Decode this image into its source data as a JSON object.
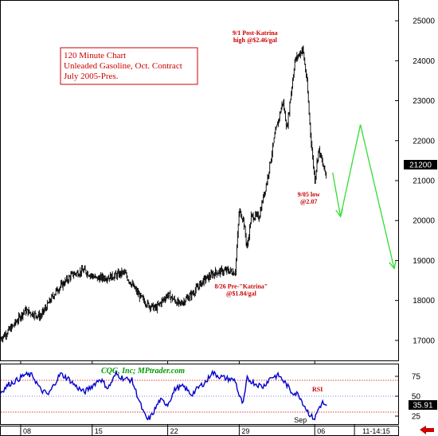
{
  "chart_data": {
    "type": "bar",
    "subtype": "ohlc",
    "title_lines": [
      "120 Minute Chart",
      "Unleaded Gasoline, Oct. Contract",
      "July 2005-Pres."
    ],
    "ylim": [
      16500,
      25500
    ],
    "y_ticks": [
      17000,
      18000,
      19000,
      20000,
      21000,
      22000,
      23000,
      24000,
      25000
    ],
    "last_value_label": "21200",
    "x_tick_labels": [
      "08",
      "15",
      "22",
      "29",
      "06"
    ],
    "x_sub_labels": [
      "Sep"
    ],
    "x_range_label": "11-14:15",
    "x_index_range": [
      0,
      100
    ],
    "x_tick_index": [
      5,
      23,
      42,
      60,
      79
    ],
    "price_anchors": [
      [
        0,
        17050
      ],
      [
        3,
        17350
      ],
      [
        6,
        17750
      ],
      [
        10,
        17600
      ],
      [
        14,
        18250
      ],
      [
        18,
        18650
      ],
      [
        21,
        18750
      ],
      [
        24,
        18550
      ],
      [
        28,
        18600
      ],
      [
        31,
        18700
      ],
      [
        33,
        18400
      ],
      [
        35,
        18100
      ],
      [
        37,
        17900
      ],
      [
        39,
        17800
      ],
      [
        42,
        18150
      ],
      [
        45,
        17900
      ],
      [
        48,
        18150
      ],
      [
        51,
        18500
      ],
      [
        54,
        18700
      ],
      [
        57,
        18750
      ],
      [
        59,
        18700
      ],
      [
        60,
        20250
      ],
      [
        61,
        20050
      ],
      [
        62,
        19300
      ],
      [
        63,
        20100
      ],
      [
        65,
        20100
      ],
      [
        67,
        21000
      ],
      [
        69,
        22150
      ],
      [
        71,
        23000
      ],
      [
        72,
        22300
      ],
      [
        74,
        24000
      ],
      [
        76,
        24300
      ],
      [
        77,
        23500
      ],
      [
        78,
        22100
      ],
      [
        79,
        21000
      ],
      [
        80,
        21800
      ],
      [
        81,
        21400
      ],
      [
        82,
        21100
      ]
    ],
    "projection": [
      {
        "x": 83.5,
        "y": 21200
      },
      {
        "x": 85.5,
        "y": 20100
      },
      {
        "x": 90.5,
        "y": 22400
      },
      {
        "x": 99,
        "y": 18800
      }
    ],
    "annotations": [
      {
        "lines": [
          "9/1 Post-Katrina",
          "high @$2.46/gal"
        ],
        "x": 64,
        "y": 24640
      },
      {
        "lines": [
          "9/05 low",
          "@2.07"
        ],
        "x": 77.5,
        "y": 20600
      },
      {
        "lines": [
          "8/26 Pre-\"Katrina\"",
          "@$1.84/gal"
        ],
        "x": 60.5,
        "y": 18300
      }
    ],
    "rsi": {
      "name": "RSI",
      "ylim": [
        15,
        90
      ],
      "y_ticks": [
        25,
        50,
        75
      ],
      "last_value_label": "35.91",
      "levels": [
        30,
        70
      ],
      "anchors": [
        [
          0,
          55
        ],
        [
          2,
          65
        ],
        [
          4,
          70
        ],
        [
          6,
          77
        ],
        [
          8,
          76
        ],
        [
          10,
          58
        ],
        [
          12,
          52
        ],
        [
          14,
          70
        ],
        [
          15,
          78
        ],
        [
          17,
          72
        ],
        [
          19,
          62
        ],
        [
          21,
          55
        ],
        [
          23,
          63
        ],
        [
          25,
          72
        ],
        [
          27,
          60
        ],
        [
          29,
          78
        ],
        [
          31,
          72
        ],
        [
          33,
          70
        ],
        [
          35,
          42
        ],
        [
          36,
          28
        ],
        [
          37,
          20
        ],
        [
          38,
          26
        ],
        [
          40,
          45
        ],
        [
          42,
          40
        ],
        [
          44,
          60
        ],
        [
          46,
          62
        ],
        [
          48,
          52
        ],
        [
          50,
          62
        ],
        [
          52,
          70
        ],
        [
          53,
          80
        ],
        [
          55,
          75
        ],
        [
          57,
          72
        ],
        [
          59,
          70
        ],
        [
          60,
          50
        ],
        [
          61,
          40
        ],
        [
          62,
          72
        ],
        [
          64,
          66
        ],
        [
          66,
          62
        ],
        [
          68,
          74
        ],
        [
          70,
          76
        ],
        [
          72,
          64
        ],
        [
          73,
          56
        ],
        [
          75,
          52
        ],
        [
          76,
          42
        ],
        [
          77,
          33
        ],
        [
          78,
          25
        ],
        [
          79,
          22
        ],
        [
          80,
          35
        ],
        [
          81,
          42
        ],
        [
          82,
          36
        ]
      ]
    },
    "credit": "CQG, Inc; MPtrader.com",
    "colors": {
      "price": "#000000",
      "rsi": "#0000cc",
      "projection": "#33dd33",
      "annotation": "#cc0000",
      "credit": "#009900",
      "rsi_level": "#cc0000",
      "rsi_mid": "#0000cc",
      "arrow": "#cc0000"
    }
  }
}
